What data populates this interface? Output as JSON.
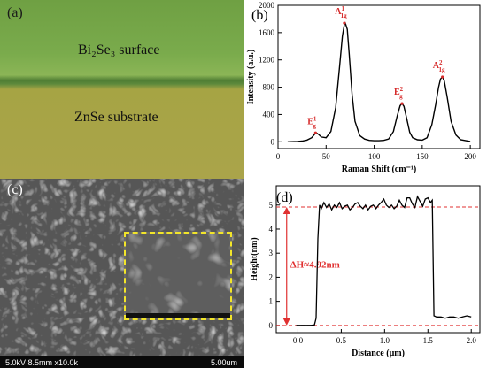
{
  "panels": {
    "a": {
      "tag": "(a)",
      "top_label": "Bi₂Se₃ surface",
      "bottom_label": "ZnSe substrate",
      "colors": {
        "surface": "#7aab4c",
        "substrate": "#aaa44a"
      }
    },
    "b": {
      "tag": "(b)"
    },
    "c": {
      "tag": "(c)",
      "footer_left": "5.0kV 8.5mm x10.0k",
      "footer_right": "5.00um",
      "inset_color": "#f2e52a"
    },
    "d": {
      "tag": "(d)"
    }
  },
  "chart_data": [
    {
      "type": "line",
      "panel": "b",
      "xlabel": "Raman Shift (cm⁻¹)",
      "ylabel": "Intensity (a.u.)",
      "xlim": [
        0,
        210
      ],
      "ylim": [
        -100,
        2000
      ],
      "xticks": [
        0,
        50,
        100,
        150,
        200
      ],
      "yticks": [
        0,
        400,
        800,
        1200,
        1600,
        2000
      ],
      "grid": false,
      "line_color": "#000000",
      "series": [
        {
          "x": [
            10,
            20,
            25,
            30,
            35,
            38,
            40,
            42,
            45,
            50,
            55,
            60,
            64,
            67,
            69,
            70,
            72,
            74,
            77,
            80,
            85,
            90,
            95,
            100,
            105,
            110,
            115,
            120,
            124,
            127,
            129,
            131,
            134,
            137,
            140,
            145,
            150,
            155,
            160,
            164,
            167,
            169,
            171,
            173,
            176,
            180,
            185,
            190,
            200
          ],
          "y": [
            0,
            5,
            10,
            25,
            60,
            110,
            130,
            110,
            70,
            60,
            150,
            500,
            1100,
            1550,
            1720,
            1740,
            1650,
            1300,
            700,
            300,
            90,
            40,
            20,
            15,
            15,
            20,
            40,
            150,
            380,
            530,
            560,
            520,
            330,
            140,
            60,
            30,
            25,
            60,
            250,
            550,
            800,
            920,
            950,
            890,
            650,
            300,
            100,
            30,
            5
          ]
        }
      ],
      "annotations": [
        {
          "text": "E",
          "sup": "1",
          "sub": "g",
          "x": 39,
          "y": 130
        },
        {
          "text": "A",
          "sup": "1",
          "sub": "1g",
          "x": 69,
          "y": 1740
        },
        {
          "text": "E",
          "sup": "2",
          "sub": "g",
          "x": 129,
          "y": 560
        },
        {
          "text": "A",
          "sup": "2",
          "sub": "1g",
          "x": 171,
          "y": 950
        }
      ]
    },
    {
      "type": "line",
      "panel": "d",
      "xlabel": "Distance (μm)",
      "ylabel": "Height(nm)",
      "xlim": [
        -0.25,
        2.1
      ],
      "ylim": [
        -0.3,
        5.8
      ],
      "xticks": [
        0.0,
        0.5,
        1.0,
        1.5,
        2.0
      ],
      "yticks": [
        0,
        1,
        2,
        3,
        4,
        5
      ],
      "grid": false,
      "line_color": "#000000",
      "reference_lines": [
        0,
        4.92
      ],
      "reference_color": "#e03030",
      "annotation": "ΔH≈4.92nm",
      "series": [
        {
          "x": [
            -0.02,
            0.05,
            0.1,
            0.15,
            0.19,
            0.21,
            0.23,
            0.25,
            0.27,
            0.3,
            0.33,
            0.36,
            0.39,
            0.42,
            0.45,
            0.48,
            0.51,
            0.54,
            0.57,
            0.6,
            0.63,
            0.66,
            0.69,
            0.72,
            0.75,
            0.78,
            0.81,
            0.84,
            0.87,
            0.9,
            0.93,
            0.96,
            0.99,
            1.02,
            1.05,
            1.08,
            1.11,
            1.14,
            1.17,
            1.2,
            1.23,
            1.26,
            1.29,
            1.32,
            1.35,
            1.38,
            1.41,
            1.44,
            1.47,
            1.5,
            1.53,
            1.55,
            1.57,
            1.6,
            1.65,
            1.7,
            1.75,
            1.8,
            1.85,
            1.9,
            1.95,
            2.0
          ],
          "y": [
            0.0,
            0.0,
            0.0,
            0.0,
            0.02,
            0.3,
            3.6,
            5.0,
            4.85,
            5.1,
            4.9,
            5.05,
            4.8,
            5.0,
            4.9,
            5.1,
            4.85,
            4.95,
            5.0,
            4.8,
            4.9,
            5.05,
            5.1,
            4.95,
            4.85,
            5.0,
            4.8,
            4.95,
            5.0,
            4.85,
            5.0,
            5.1,
            5.25,
            5.0,
            4.9,
            5.0,
            4.85,
            4.95,
            5.2,
            5.0,
            4.9,
            5.3,
            5.3,
            5.05,
            4.9,
            5.35,
            5.15,
            4.95,
            5.25,
            5.3,
            5.1,
            5.2,
            0.4,
            0.35,
            0.35,
            0.3,
            0.35,
            0.35,
            0.3,
            0.35,
            0.4,
            0.35
          ]
        }
      ]
    }
  ]
}
